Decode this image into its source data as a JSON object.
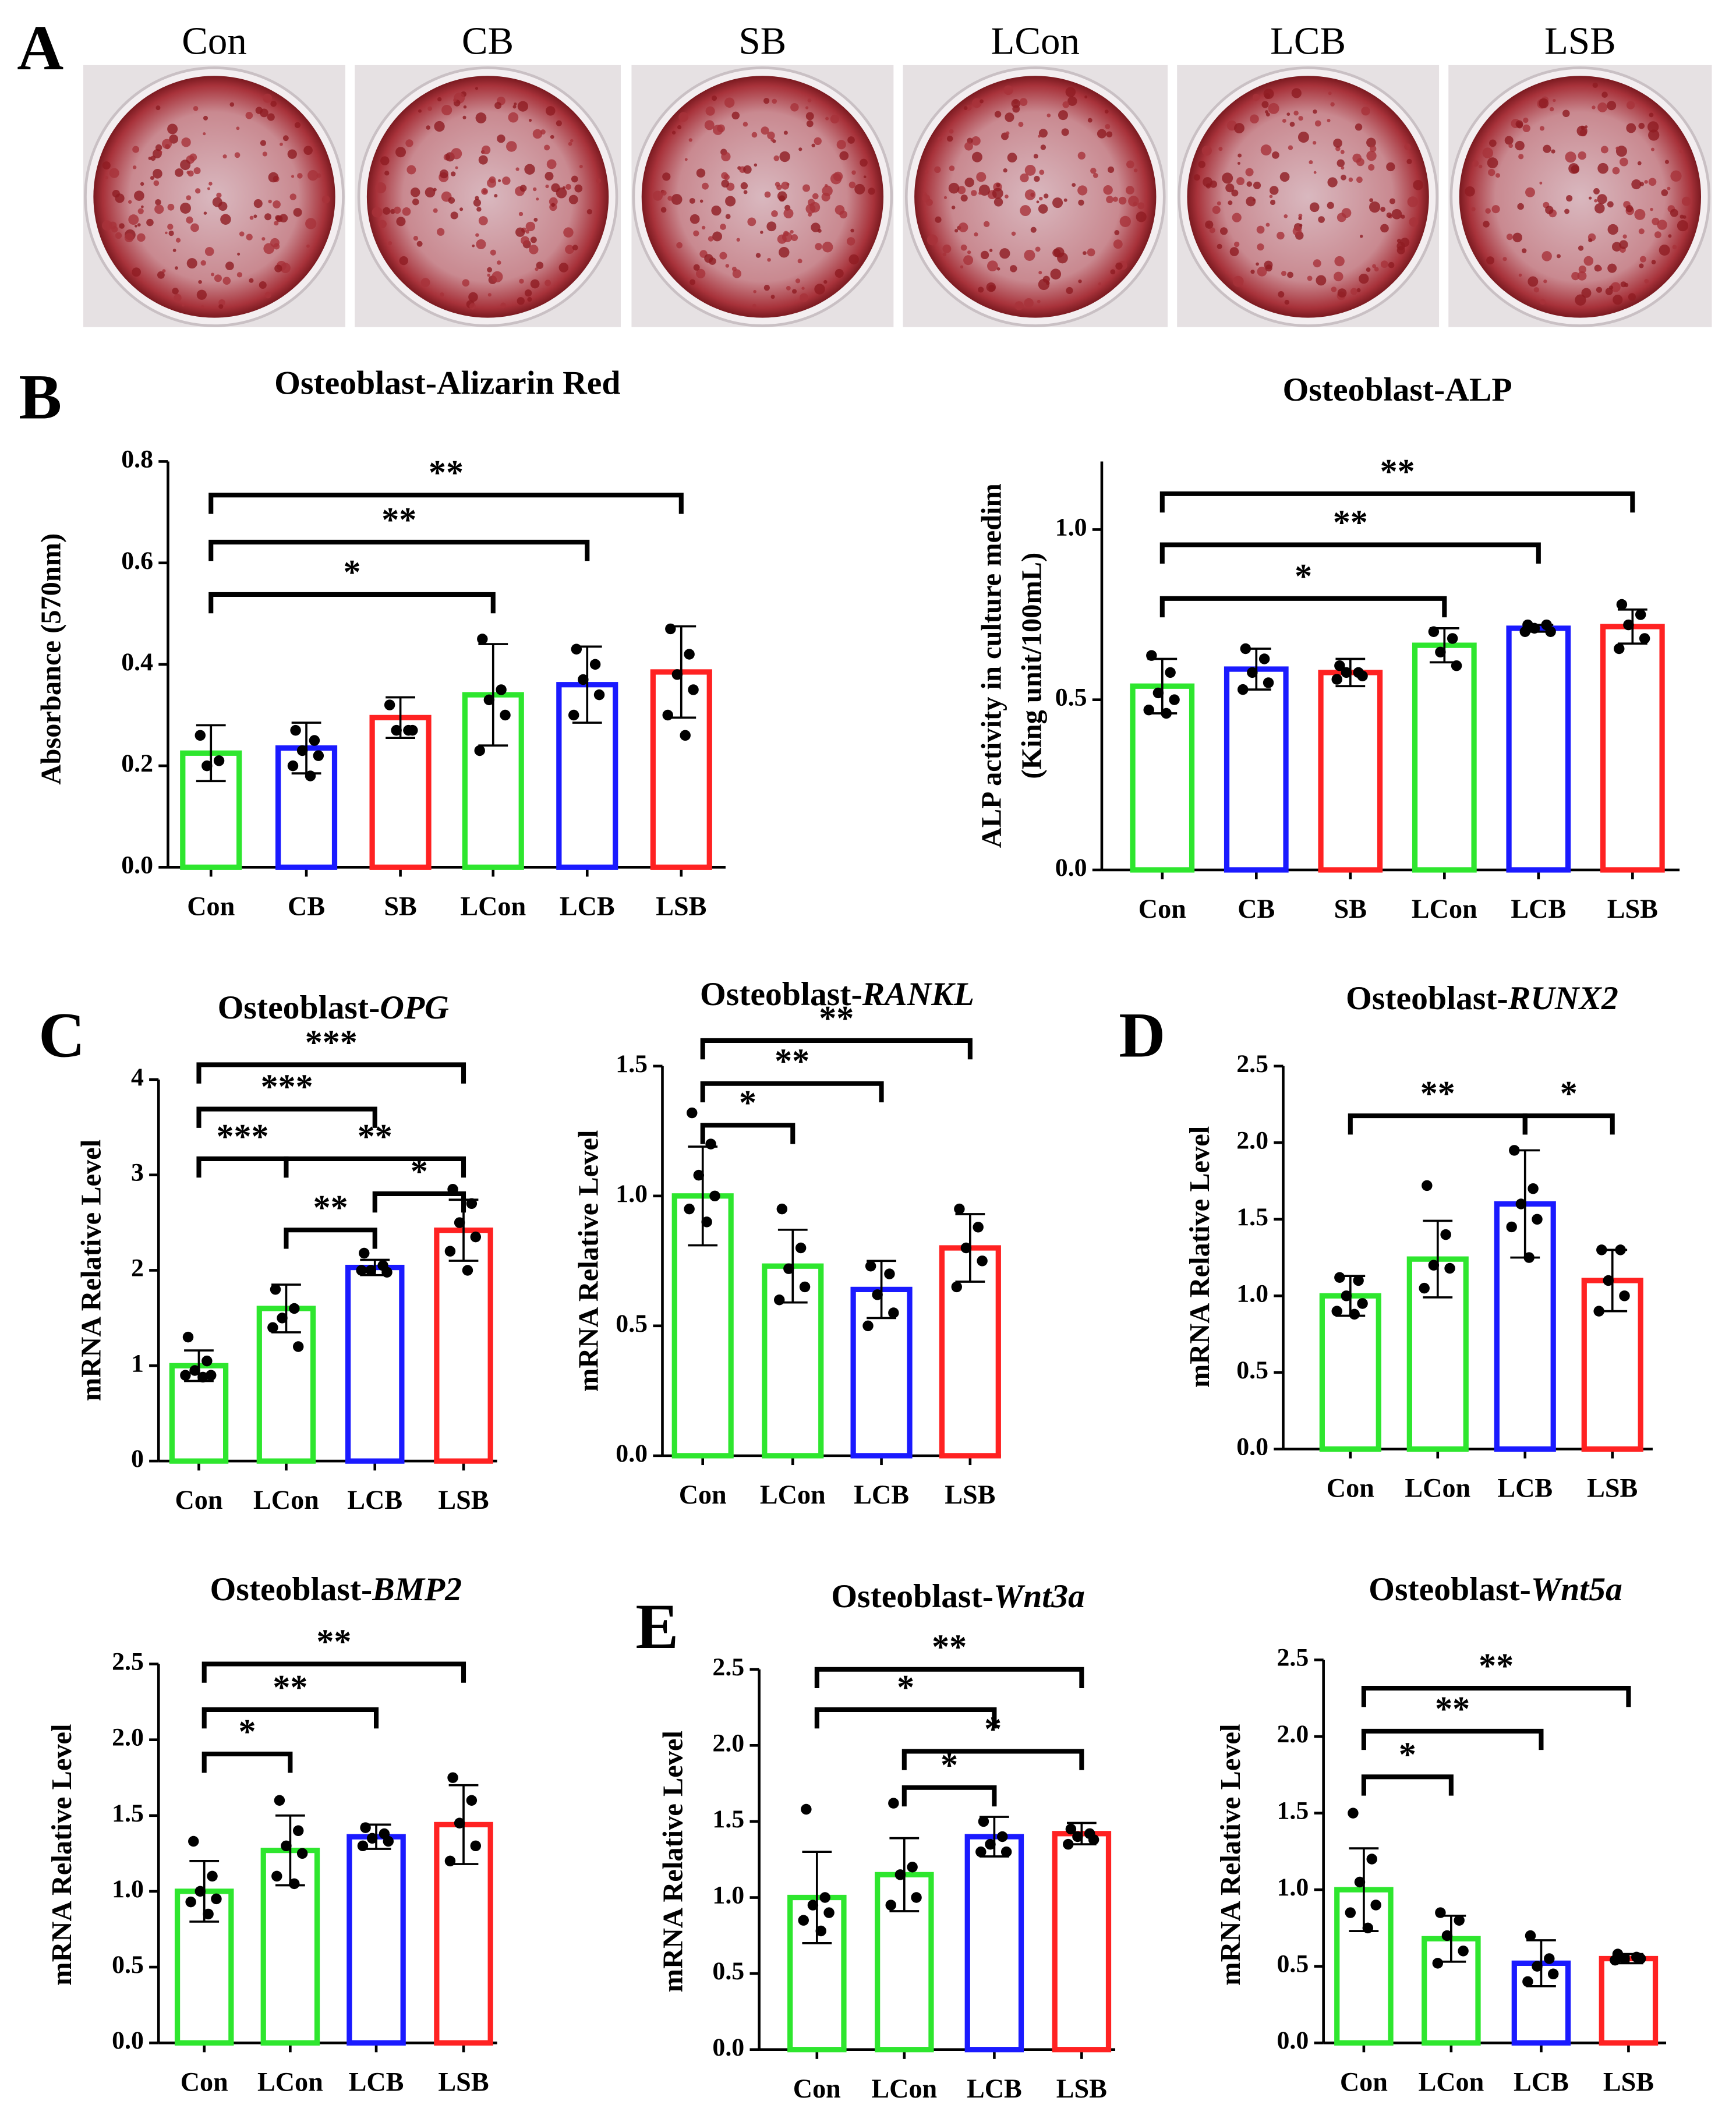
{
  "panel_labels": [
    "A",
    "B",
    "C",
    "D",
    "E"
  ],
  "photos": {
    "labels": [
      "Con",
      "CB",
      "SB",
      "LCon",
      "LCB",
      "LSB"
    ]
  },
  "chart_data": [
    {
      "type": "bar",
      "title": "Osteoblast-Alizarin Red",
      "y_label": "Absorbance (570nm)",
      "categories": [
        "Con",
        "CB",
        "SB",
        "LCon",
        "LCB",
        "LSB"
      ],
      "colors": [
        "#2ee62e",
        "#1a1aff",
        "#ff2222",
        "#2ee62e",
        "#1a1aff",
        "#ff2222"
      ],
      "values": [
        0.225,
        0.235,
        0.295,
        0.34,
        0.36,
        0.385
      ],
      "errors": [
        0.055,
        0.05,
        0.04,
        0.1,
        0.075,
        0.09
      ],
      "points": [
        [
          0.26,
          0.21,
          0.2
        ],
        [
          0.27,
          0.25,
          0.23,
          0.22,
          0.2,
          0.18
        ],
        [
          0.32,
          0.27,
          0.27,
          0.27
        ],
        [
          0.45,
          0.35,
          0.33,
          0.3,
          0.23
        ],
        [
          0.43,
          0.4,
          0.37,
          0.34,
          0.3
        ],
        [
          0.47,
          0.42,
          0.38,
          0.35,
          0.3,
          0.26
        ]
      ],
      "ylim": [
        0,
        0.8
      ],
      "yticks": [
        {
          "value": 0,
          "label": "0.0"
        },
        0.2,
        0.4,
        0.6,
        0.8
      ],
      "brackets": [
        {
          "from": 0,
          "to": 3,
          "label": "*"
        },
        {
          "from": 0,
          "to": 4,
          "label": "**"
        },
        {
          "from": 0,
          "to": 5,
          "label": "**"
        }
      ]
    },
    {
      "type": "bar",
      "title": "Osteoblast-ALP",
      "y_label": [
        "ALP activity in culture medim",
        "(King unit/100mL)"
      ],
      "categories": [
        "Con",
        "CB",
        "SB",
        "LCon",
        "LCB",
        "LSB"
      ],
      "colors": [
        "#2ee62e",
        "#1a1aff",
        "#ff2222",
        "#2ee62e",
        "#1a1aff",
        "#ff2222"
      ],
      "values": [
        0.54,
        0.59,
        0.58,
        0.66,
        0.71,
        0.715
      ],
      "errors": [
        0.08,
        0.06,
        0.04,
        0.05,
        0.01,
        0.05
      ],
      "points": [
        [
          0.63,
          0.58,
          0.52,
          0.5,
          0.47,
          0.46
        ],
        [
          0.65,
          0.62,
          0.58,
          0.55,
          0.53
        ],
        [
          0.6,
          0.58,
          0.58,
          0.57,
          0.56
        ],
        [
          0.7,
          0.68,
          0.64,
          0.6
        ],
        [
          0.72,
          0.72,
          0.71,
          0.7,
          0.7
        ],
        [
          0.78,
          0.75,
          0.72,
          0.68,
          0.65
        ]
      ],
      "ylim": [
        0,
        1.2
      ],
      "yticks": [
        {
          "value": 0,
          "label": "0.0"
        },
        0.5,
        {
          "value": 1,
          "label": "1.0"
        }
      ],
      "brackets": [
        {
          "from": 0,
          "to": 3,
          "label": "*"
        },
        {
          "from": 0,
          "to": 4,
          "label": "**"
        },
        {
          "from": 0,
          "to": 5,
          "label": "**"
        }
      ]
    },
    {
      "type": "bar",
      "title": "Osteoblast-",
      "title_italic": "OPG",
      "y_label": "mRNA Relative Level",
      "categories": [
        "Con",
        "LCon",
        "LCB",
        "LSB"
      ],
      "colors": [
        "#2ee62e",
        "#2ee62e",
        "#1a1aff",
        "#ff2222"
      ],
      "values": [
        1.0,
        1.6,
        2.03,
        2.42
      ],
      "errors": [
        0.16,
        0.25,
        0.08,
        0.32
      ],
      "points": [
        [
          1.3,
          1.05,
          0.95,
          0.9,
          0.9,
          0.88
        ],
        [
          1.8,
          1.6,
          1.5,
          1.2,
          1.4
        ],
        [
          2.18,
          2.05,
          2.0,
          1.98,
          2.0
        ],
        [
          2.85,
          2.7,
          2.5,
          2.35,
          2.2,
          2.0
        ]
      ],
      "ylim": [
        0,
        4
      ],
      "yticks": [
        0,
        1,
        2,
        3,
        4
      ],
      "brackets": [
        {
          "from": 0,
          "to": 1,
          "label": "***"
        },
        {
          "from": 0,
          "to": 2,
          "label": "***"
        },
        {
          "from": 0,
          "to": 3,
          "label": "***"
        },
        {
          "from": 1,
          "to": 3,
          "label": "**"
        },
        {
          "from": 1,
          "to": 2,
          "label": "**"
        },
        {
          "from": 2,
          "to": 3,
          "label": "*"
        }
      ]
    },
    {
      "type": "bar",
      "title": "Osteoblast-",
      "title_italic": "RANKL",
      "y_label": "mRNA Relative Level",
      "categories": [
        "Con",
        "LCon",
        "LCB",
        "LSB"
      ],
      "colors": [
        "#2ee62e",
        "#2ee62e",
        "#1a1aff",
        "#ff2222"
      ],
      "values": [
        1.0,
        0.73,
        0.64,
        0.8
      ],
      "errors": [
        0.19,
        0.14,
        0.11,
        0.13
      ],
      "points": [
        [
          1.32,
          1.2,
          1.08,
          1.0,
          0.95,
          0.9
        ],
        [
          0.95,
          0.8,
          0.72,
          0.65,
          0.6
        ],
        [
          0.73,
          0.7,
          0.62,
          0.55,
          0.5
        ],
        [
          0.95,
          0.88,
          0.8,
          0.75,
          0.65
        ]
      ],
      "ylim": [
        0,
        1.5
      ],
      "yticks": [
        {
          "value": 0,
          "label": "0.0"
        },
        0.5,
        {
          "value": 1,
          "label": "1.0"
        },
        1.5
      ],
      "brackets": [
        {
          "from": 0,
          "to": 1,
          "label": "*"
        },
        {
          "from": 0,
          "to": 2,
          "label": "**"
        },
        {
          "from": 0,
          "to": 3,
          "label": "**"
        }
      ]
    },
    {
      "type": "bar",
      "title": "Osteoblast-",
      "title_italic": "RUNX2",
      "y_label": "mRNA Relative Level",
      "categories": [
        "Con",
        "LCon",
        "LCB",
        "LSB"
      ],
      "colors": [
        "#2ee62e",
        "#2ee62e",
        "#1a1aff",
        "#ff2222"
      ],
      "values": [
        1.0,
        1.24,
        1.6,
        1.1
      ],
      "errors": [
        0.13,
        0.25,
        0.35,
        0.2
      ],
      "points": [
        [
          1.12,
          1.1,
          1.0,
          0.95,
          0.9,
          0.88
        ],
        [
          1.72,
          1.4,
          1.2,
          1.18,
          1.05
        ],
        [
          1.95,
          1.7,
          1.6,
          1.5,
          1.45,
          1.25
        ],
        [
          1.3,
          1.3,
          1.1,
          1.0,
          0.9
        ]
      ],
      "ylim": [
        0,
        2.5
      ],
      "yticks": [
        {
          "value": 0,
          "label": "0.0"
        },
        0.5,
        {
          "value": 1,
          "label": "1.0"
        },
        1.5,
        {
          "value": 2,
          "label": "2.0"
        },
        2.5
      ],
      "brackets": [
        {
          "from": 0,
          "to": 2,
          "label": "**"
        },
        {
          "from": 2,
          "to": 3,
          "label": "*"
        }
      ]
    },
    {
      "type": "bar",
      "title": "Osteoblast-",
      "title_italic": "BMP2",
      "y_label": "mRNA Relative Level",
      "categories": [
        "Con",
        "LCon",
        "LCB",
        "LSB"
      ],
      "colors": [
        "#2ee62e",
        "#2ee62e",
        "#1a1aff",
        "#ff2222"
      ],
      "values": [
        1.0,
        1.27,
        1.36,
        1.44
      ],
      "errors": [
        0.2,
        0.23,
        0.08,
        0.26
      ],
      "points": [
        [
          1.33,
          1.1,
          1.0,
          0.95,
          0.93,
          0.85
        ],
        [
          1.6,
          1.4,
          1.3,
          1.25,
          1.1,
          1.05
        ],
        [
          1.42,
          1.38,
          1.35,
          1.33,
          1.3
        ],
        [
          1.75,
          1.6,
          1.45,
          1.3,
          1.2
        ]
      ],
      "ylim": [
        0,
        2.5
      ],
      "yticks": [
        {
          "value": 0,
          "label": "0.0"
        },
        0.5,
        {
          "value": 1,
          "label": "1.0"
        },
        1.5,
        {
          "value": 2,
          "label": "2.0"
        },
        2.5
      ],
      "brackets": [
        {
          "from": 0,
          "to": 1,
          "label": "*"
        },
        {
          "from": 0,
          "to": 2,
          "label": "**"
        },
        {
          "from": 0,
          "to": 3,
          "label": "**"
        }
      ]
    },
    {
      "type": "bar",
      "title": "Osteoblast-",
      "title_italic": "Wnt3a",
      "y_label": "mRNA Relative Level",
      "categories": [
        "Con",
        "LCon",
        "LCB",
        "LSB"
      ],
      "colors": [
        "#2ee62e",
        "#2ee62e",
        "#1a1aff",
        "#ff2222"
      ],
      "values": [
        1.0,
        1.15,
        1.4,
        1.42
      ],
      "errors": [
        0.3,
        0.24,
        0.13,
        0.07
      ],
      "points": [
        [
          1.58,
          1.0,
          0.95,
          0.9,
          0.85,
          0.78
        ],
        [
          1.62,
          1.2,
          1.15,
          1.0,
          0.95
        ],
        [
          1.5,
          1.4,
          1.35,
          1.3,
          1.3
        ],
        [
          1.45,
          1.42,
          1.4,
          1.38,
          1.35
        ]
      ],
      "ylim": [
        0,
        2.5
      ],
      "yticks": [
        {
          "value": 0,
          "label": "0.0"
        },
        0.5,
        {
          "value": 1,
          "label": "1.0"
        },
        1.5,
        {
          "value": 2,
          "label": "2.0"
        },
        2.5
      ],
      "brackets": [
        {
          "from": 0,
          "to": 2,
          "label": "*"
        },
        {
          "from": 0,
          "to": 3,
          "label": "**"
        },
        {
          "from": 1,
          "to": 2,
          "label": "*"
        },
        {
          "from": 1,
          "to": 3,
          "label": "*"
        }
      ]
    },
    {
      "type": "bar",
      "title": "Osteoblast-",
      "title_italic": "Wnt5a",
      "y_label": "mRNA Relative Level",
      "categories": [
        "Con",
        "LCon",
        "LCB",
        "LSB"
      ],
      "colors": [
        "#2ee62e",
        "#2ee62e",
        "#1a1aff",
        "#ff2222"
      ],
      "values": [
        1.0,
        0.68,
        0.52,
        0.55
      ],
      "errors": [
        0.27,
        0.15,
        0.15,
        0.03
      ],
      "points": [
        [
          1.5,
          1.2,
          1.05,
          0.9,
          0.85,
          0.75
        ],
        [
          0.85,
          0.8,
          0.7,
          0.6,
          0.52
        ],
        [
          0.7,
          0.55,
          0.5,
          0.45,
          0.4
        ],
        [
          0.58,
          0.56,
          0.55,
          0.55,
          0.54
        ]
      ],
      "ylim": [
        0,
        2.5
      ],
      "yticks": [
        {
          "value": 0,
          "label": "0.0"
        },
        0.5,
        {
          "value": 1,
          "label": "1.0"
        },
        1.5,
        {
          "value": 2,
          "label": "2.0"
        },
        2.5
      ],
      "brackets": [
        {
          "from": 0,
          "to": 1,
          "label": "*"
        },
        {
          "from": 0,
          "to": 2,
          "label": "**"
        },
        {
          "from": 0,
          "to": 3,
          "label": "**"
        }
      ]
    }
  ]
}
